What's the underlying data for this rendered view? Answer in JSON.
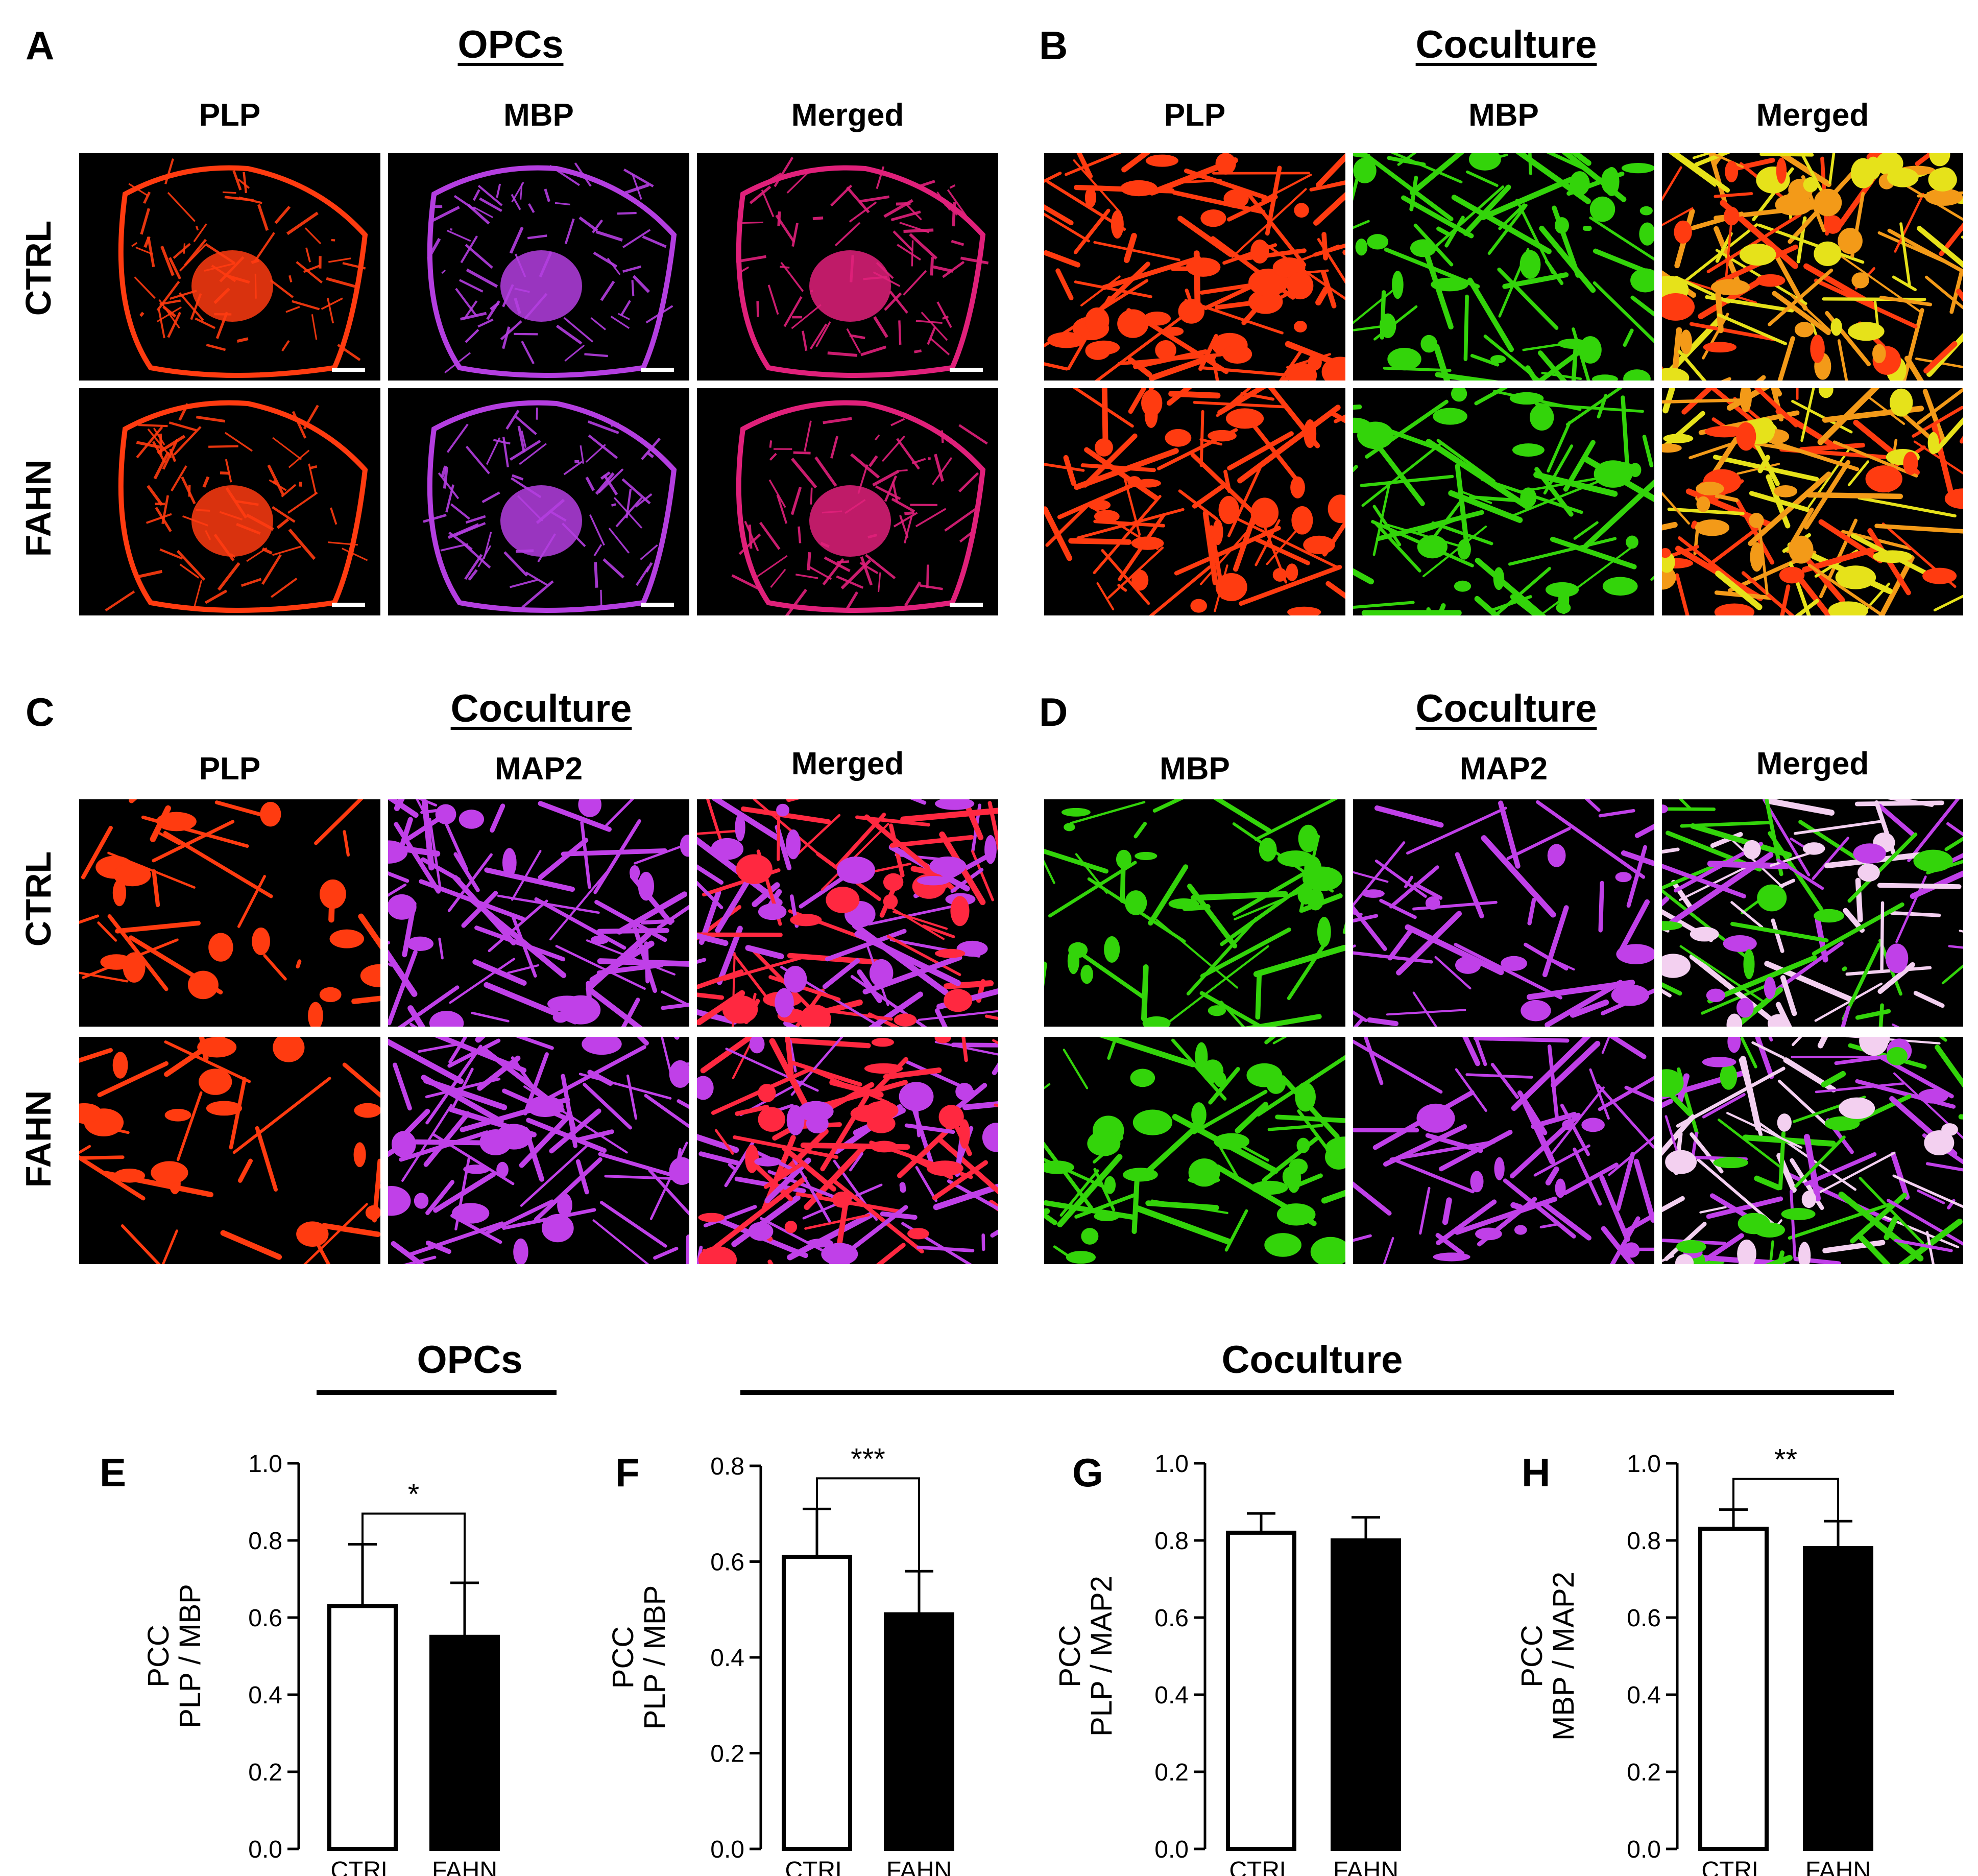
{
  "figure": {
    "panels_top": [
      {
        "letter": "A",
        "title": "OPCs",
        "columns": [
          "PLP",
          "MBP",
          "Merged"
        ],
        "rows": [
          "CTRL",
          "FAHN"
        ]
      },
      {
        "letter": "B",
        "title": "Coculture",
        "columns": [
          "PLP",
          "MBP",
          "Merged"
        ],
        "rows": []
      },
      {
        "letter": "C",
        "title": "Coculture",
        "columns": [
          "PLP",
          "MAP2",
          "Merged"
        ],
        "rows": [
          "CTRL",
          "FAHN"
        ]
      },
      {
        "letter": "D",
        "title": "Coculture",
        "columns": [
          "MBP",
          "MAP2",
          "Merged"
        ],
        "rows": []
      }
    ],
    "group_titles": {
      "opcs": "OPCs",
      "coculture": "Coculture"
    },
    "colors": {
      "plp": "#ff3b10",
      "mbp_a": "#b43ee0",
      "merged_a": "#e0207a",
      "mbp_green": "#33d40a",
      "map2": "#c040e8",
      "yellow": "#e6e21a",
      "white_pink": "#f3d0f0"
    }
  },
  "chart_data": [
    {
      "type": "bar",
      "panel": "E",
      "categories": [
        "CTRL",
        "FAHN"
      ],
      "values": [
        0.63,
        0.55
      ],
      "errors": [
        0.16,
        0.14
      ],
      "fills": [
        "#ffffff",
        "#000000"
      ],
      "ylabel": [
        "PCC",
        "PLP / MBP"
      ],
      "ylim": [
        0,
        1.0
      ],
      "yticks": [
        "0.0",
        "0.2",
        "0.4",
        "0.6",
        "0.8",
        "1.0"
      ],
      "significance": "*"
    },
    {
      "type": "bar",
      "panel": "F",
      "categories": [
        "CTRL",
        "FAHN"
      ],
      "values": [
        0.61,
        0.49
      ],
      "errors": [
        0.1,
        0.09
      ],
      "fills": [
        "#ffffff",
        "#000000"
      ],
      "ylabel": [
        "PCC",
        "PLP / MBP"
      ],
      "ylim": [
        0,
        0.8
      ],
      "yticks": [
        "0.0",
        "0.2",
        "0.4",
        "0.6",
        "0.8"
      ],
      "significance": "***"
    },
    {
      "type": "bar",
      "panel": "G",
      "categories": [
        "CTRL",
        "FAHN"
      ],
      "values": [
        0.82,
        0.8
      ],
      "errors": [
        0.05,
        0.06
      ],
      "fills": [
        "#ffffff",
        "#000000"
      ],
      "ylabel": [
        "PCC",
        "PLP / MAP2"
      ],
      "ylim": [
        0,
        1.0
      ],
      "yticks": [
        "0.0",
        "0.2",
        "0.4",
        "0.6",
        "0.8",
        "1.0"
      ],
      "significance": ""
    },
    {
      "type": "bar",
      "panel": "H",
      "categories": [
        "CTRL",
        "FAHN"
      ],
      "values": [
        0.83,
        0.78
      ],
      "errors": [
        0.05,
        0.07
      ],
      "fills": [
        "#ffffff",
        "#000000"
      ],
      "ylabel": [
        "PCC",
        "MBP / MAP2"
      ],
      "ylim": [
        0,
        1.0
      ],
      "yticks": [
        "0.0",
        "0.2",
        "0.4",
        "0.6",
        "0.8",
        "1.0"
      ],
      "significance": "**"
    }
  ]
}
